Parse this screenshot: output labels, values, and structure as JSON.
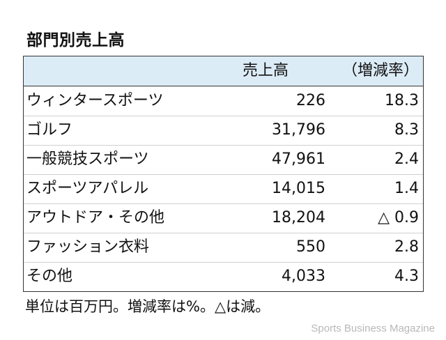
{
  "title": "部門別売上高",
  "table": {
    "columns": [
      "",
      "売上高",
      "（増減率）"
    ],
    "rows": [
      {
        "category": "ウィンタースポーツ",
        "sales": "226",
        "rate": "18.3"
      },
      {
        "category": "ゴルフ",
        "sales": "31,796",
        "rate": "8.3"
      },
      {
        "category": "一般競技スポーツ",
        "sales": "47,961",
        "rate": "2.4"
      },
      {
        "category": "スポーツアパレル",
        "sales": "14,015",
        "rate": "1.4"
      },
      {
        "category": "アウトドア・その他",
        "sales": "18,204",
        "rate": "△ 0.9"
      },
      {
        "category": "ファッション衣料",
        "sales": "550",
        "rate": "2.8"
      },
      {
        "category": "その他",
        "sales": "4,033",
        "rate": "4.3"
      }
    ]
  },
  "note": "単位は百万円。増減率は%。△は減。",
  "brand": "Sports Business Magazine"
}
